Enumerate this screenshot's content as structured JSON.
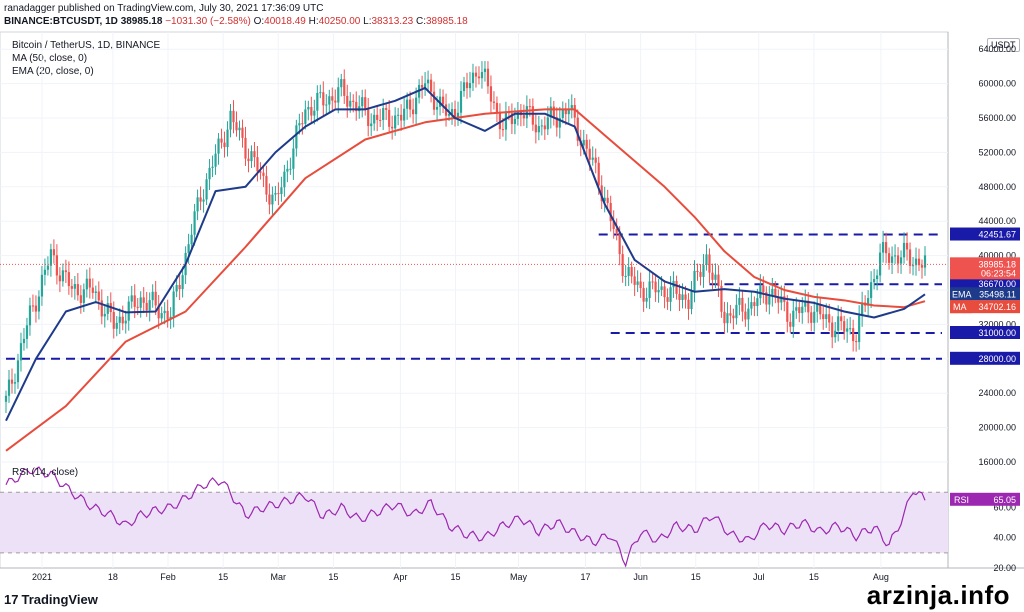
{
  "header": {
    "publisher_line": "ranadagger published on TradingView.com, July 30, 2021 17:36:09 UTC",
    "symbol": "BINANCE:BTCUSDT, 1D",
    "price": "38985.18",
    "change": "−1031.30 (−2.58%)",
    "ohlc": {
      "o_label": "O:",
      "o": "40018.49",
      "h_label": "H:",
      "h": "40250.00",
      "l_label": "L:",
      "l": "38313.23",
      "c_label": "C:",
      "c": "38985.18"
    }
  },
  "legend": {
    "title": "Bitcoin / TetherUS, 1D, BINANCE",
    "ma": "MA (50, close, 0)",
    "ema": "EMA (20, close, 0)",
    "rsi": "RSI (14, close)"
  },
  "currency_badge": "USDT",
  "brand": {
    "logo": "17",
    "name": "TradingView"
  },
  "watermark": "arzinja.info",
  "colors": {
    "up": "#26a69a",
    "down": "#ef5350",
    "ema": "#1e3a8a",
    "ma": "#e74c3c",
    "level": "#1a1aa8",
    "rsi": "#9c27b0",
    "rsi_band": "#ede1f7",
    "current": "#131722"
  },
  "chart_data": [
    {
      "type": "line",
      "title": "Bitcoin / TetherUS, 1D, BINANCE",
      "x_tick_labels": [
        "2021",
        "18",
        "Feb",
        "15",
        "Mar",
        "15",
        "Apr",
        "15",
        "May",
        "17",
        "Jun",
        "15",
        "Jul",
        "15",
        "Aug"
      ],
      "ylim": [
        16000,
        66000
      ],
      "y_ticks": [
        16000,
        20000,
        24000,
        28000,
        32000,
        36000,
        40000,
        44000,
        48000,
        52000,
        56000,
        60000,
        64000
      ],
      "y_tick_labels": [
        "16000.00",
        "20000.00",
        "24000.00",
        "28000.00",
        "32000.00",
        "36000.00",
        "40000.00",
        "44000.00",
        "48000.00",
        "52000.00",
        "56000.00",
        "60000.00",
        "64000.00"
      ],
      "price_close_series": {
        "name": "BTCUSDT",
        "x": [
          0,
          8,
          15,
          22,
          29,
          36,
          45,
          55,
          65,
          75,
          90,
          100,
          112,
          122,
          132,
          140,
          148,
          158,
          166,
          172,
          178,
          188,
          198,
          207,
          212,
          220,
          228,
          234,
          240,
          248,
          255,
          262,
          268,
          276,
          284,
          292,
          300,
          307
        ],
        "y": [
          23000,
          33000,
          40000,
          36000,
          36000,
          32000,
          35000,
          33000,
          47000,
          56000,
          46000,
          57000,
          59000,
          56000,
          56000,
          60000,
          56000,
          62000,
          55000,
          57000,
          55000,
          57000,
          49000,
          38000,
          36000,
          36000,
          35000,
          40000,
          33000,
          34000,
          36000,
          33000,
          34000,
          32000,
          31000,
          40000,
          40000,
          38985
        ]
      },
      "series": [
        {
          "name": "EMA",
          "x": [
            0,
            10,
            20,
            30,
            40,
            50,
            60,
            70,
            80,
            90,
            100,
            110,
            120,
            130,
            140,
            150,
            160,
            170,
            180,
            190,
            200,
            210,
            220,
            230,
            240,
            250,
            260,
            270,
            280,
            290,
            300,
            307
          ],
          "y": [
            20800,
            28000,
            33500,
            34600,
            33400,
            33500,
            39000,
            47500,
            48000,
            52000,
            55000,
            57000,
            57000,
            58000,
            59500,
            56000,
            54500,
            56500,
            56500,
            55000,
            46000,
            39500,
            37000,
            35800,
            36100,
            35800,
            35000,
            34500,
            33500,
            32800,
            33800,
            35498.11
          ]
        },
        {
          "name": "MA",
          "x": [
            0,
            20,
            40,
            60,
            80,
            100,
            120,
            140,
            160,
            180,
            190,
            200,
            210,
            220,
            230,
            240,
            250,
            260,
            270,
            280,
            290,
            300,
            307
          ],
          "y": [
            17300,
            22500,
            30000,
            33500,
            41000,
            49000,
            53500,
            55500,
            56500,
            57000,
            57000,
            54000,
            51000,
            48000,
            44500,
            40500,
            37500,
            36000,
            35200,
            34800,
            34200,
            34000,
            34702.16
          ]
        }
      ],
      "horizontal_levels": [
        42451.67,
        36670.0,
        31000.0,
        28000.0
      ],
      "level_labels": [
        "42451.67",
        "36670.00",
        "31000.00",
        "28000.00"
      ],
      "current_price": 38985.18,
      "current_price_label": "38985.18",
      "countdown_label": "06:23:54",
      "ema_tag": "EMA",
      "ema_value_label": "35498.11",
      "ma_tag": "MA",
      "ma_value_label": "34702.16",
      "grid": true
    },
    {
      "type": "line",
      "title": "RSI (14, close)",
      "ylim": [
        20,
        90
      ],
      "y_tick_labels": [
        "20.00",
        "40.00",
        "60.00"
      ],
      "y_ticks": [
        20,
        40,
        60
      ],
      "band": [
        30,
        70
      ],
      "series": [
        {
          "name": "RSI",
          "x": [
            0,
            8,
            15,
            22,
            29,
            35,
            40,
            45,
            50,
            55,
            60,
            66,
            72,
            80,
            86,
            92,
            100,
            106,
            112,
            118,
            124,
            130,
            136,
            142,
            148,
            154,
            160,
            166,
            172,
            178,
            184,
            190,
            196,
            202,
            207,
            212,
            218,
            224,
            230,
            236,
            242,
            248,
            254,
            260,
            266,
            272,
            278,
            284,
            290,
            295,
            300,
            303,
            307
          ],
          "y": [
            75,
            85,
            82,
            70,
            60,
            55,
            48,
            55,
            58,
            60,
            66,
            75,
            78,
            55,
            60,
            63,
            68,
            54,
            60,
            52,
            57,
            62,
            55,
            63,
            48,
            42,
            40,
            48,
            53,
            44,
            50,
            43,
            37,
            42,
            24,
            44,
            38,
            48,
            45,
            55,
            42,
            38,
            49,
            45,
            50,
            44,
            48,
            41,
            47,
            35,
            55,
            72,
            65.05
          ]
        }
      ],
      "current_value": 65.05,
      "rsi_tag": "RSI",
      "rsi_value_label": "65.05"
    }
  ]
}
